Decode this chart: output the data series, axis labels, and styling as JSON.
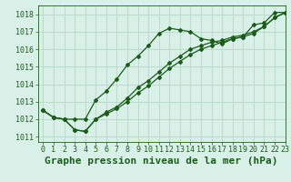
{
  "title": "Graphe pression niveau de la mer (hPa)",
  "background_color": "#d8f0e8",
  "line_color": "#1a5c1a",
  "grid_color": "#b8d8c8",
  "xlim": [
    -0.5,
    23
  ],
  "ylim": [
    1010.7,
    1018.5
  ],
  "yticks": [
    1011,
    1012,
    1013,
    1014,
    1015,
    1016,
    1017,
    1018
  ],
  "xticks": [
    0,
    1,
    2,
    3,
    4,
    5,
    6,
    7,
    8,
    9,
    10,
    11,
    12,
    13,
    14,
    15,
    16,
    17,
    18,
    19,
    20,
    21,
    22,
    23
  ],
  "series": [
    [
      1012.5,
      1012.1,
      1012.0,
      1012.0,
      1012.0,
      1013.1,
      1013.6,
      1014.3,
      1015.1,
      1015.6,
      1016.2,
      1016.9,
      1017.2,
      1017.1,
      1017.0,
      1016.6,
      1016.5,
      1016.3,
      1016.6,
      1016.7,
      1017.4,
      1017.5,
      1018.1,
      1018.1
    ],
    [
      1012.5,
      1012.1,
      1012.0,
      1011.4,
      1011.3,
      1012.0,
      1012.4,
      1012.7,
      1013.2,
      1013.8,
      1014.2,
      1014.7,
      1015.2,
      1015.6,
      1016.0,
      1016.2,
      1016.4,
      1016.5,
      1016.7,
      1016.8,
      1017.0,
      1017.3,
      1017.8,
      1018.1
    ],
    [
      1012.5,
      1012.1,
      1012.0,
      1011.4,
      1011.3,
      1012.0,
      1012.3,
      1012.6,
      1013.0,
      1013.5,
      1013.9,
      1014.4,
      1014.9,
      1015.3,
      1015.7,
      1016.0,
      1016.2,
      1016.4,
      1016.6,
      1016.7,
      1016.9,
      1017.3,
      1017.8,
      1018.1
    ]
  ],
  "title_fontsize": 8,
  "tick_fontsize": 6,
  "marker": "D",
  "marker_size": 2,
  "linewidth": 0.9
}
